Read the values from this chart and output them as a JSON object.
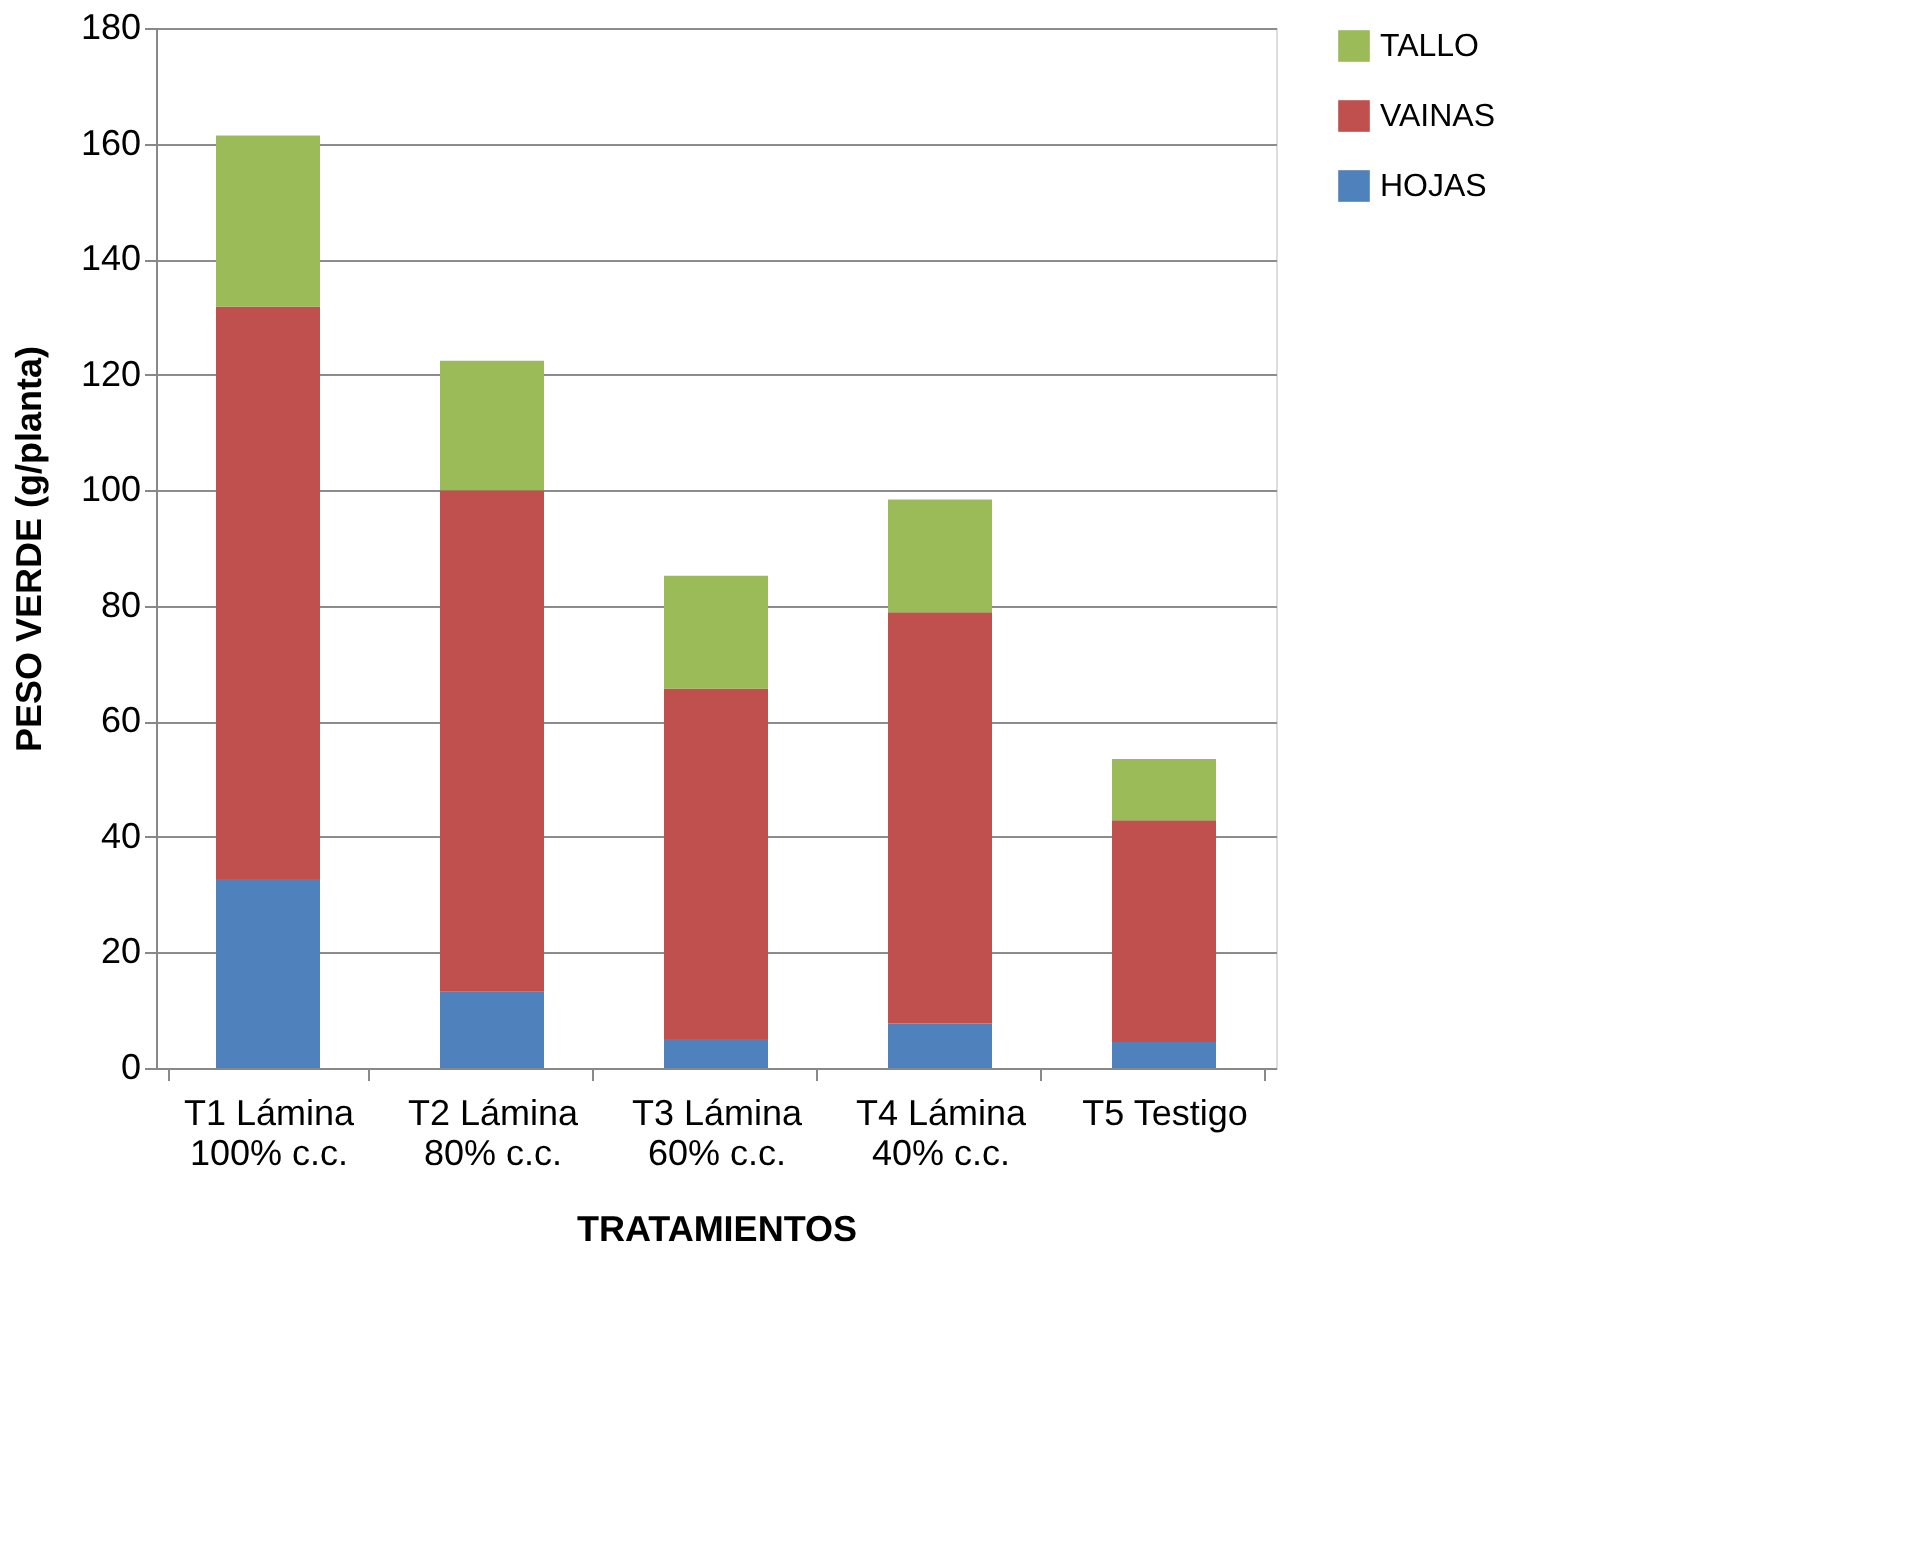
{
  "chart_data": {
    "type": "bar",
    "stacked": true,
    "xlabel": "TRATAMIENTOS",
    "ylabel": "PESO VERDE (g/planta)",
    "categories": [
      "T1 Lámina\n100% c.c.",
      "T2 Lámina\n80% c.c.",
      "T3 Lámina\n60% c.c.",
      "T4 Lámina\n40% c.c.",
      "T5 Testigo"
    ],
    "series": [
      {
        "name": "HOJAS",
        "color": "#4f81bd",
        "values": [
          32.7,
          13.2,
          5,
          7.7,
          4.5
        ]
      },
      {
        "name": "VAINAS",
        "color": "#c0504d",
        "values": [
          99.1,
          86.8,
          60.7,
          71.2,
          38.4
        ]
      },
      {
        "name": "TALLO",
        "color": "#9bbb59",
        "values": [
          29.6,
          22.4,
          19.5,
          19.5,
          10.6
        ]
      }
    ],
    "ylim": [
      0,
      180
    ],
    "yticks": [
      0,
      20,
      40,
      60,
      80,
      100,
      120,
      140,
      160,
      180
    ],
    "grid": "y",
    "legend": "right"
  }
}
